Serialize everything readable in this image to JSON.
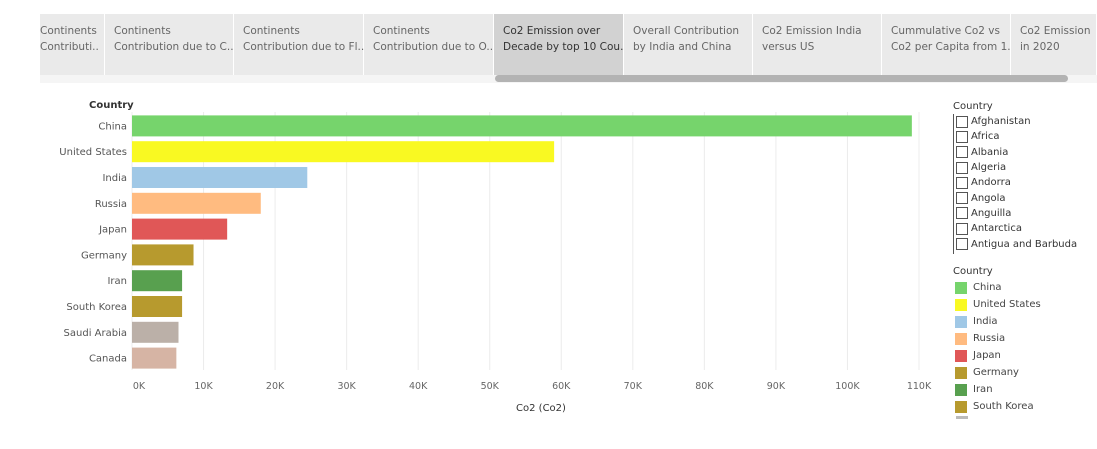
{
  "tabs": [
    {
      "line1": "Continents",
      "line2": "Contributi..",
      "active": false
    },
    {
      "line1": "Continents",
      "line2": "Contribution due to C..",
      "active": false
    },
    {
      "line1": "Continents",
      "line2": "Contribution due to Fl..",
      "active": false
    },
    {
      "line1": "Continents",
      "line2": "Contribution due to O..",
      "active": false
    },
    {
      "line1": "Co2 Emission over",
      "line2": "Decade by top 10 Cou..",
      "active": true
    },
    {
      "line1": "Overall Contribution",
      "line2": "by India and China",
      "active": false
    },
    {
      "line1": "Co2 Emission India",
      "line2": "versus US",
      "active": false
    },
    {
      "line1": "Cummulative Co2 vs",
      "line2": "Co2 per Capita from 1..",
      "active": false
    },
    {
      "line1": "Co2 Emission",
      "line2": "in 2020",
      "active": false
    }
  ],
  "filter": {
    "title": "Country",
    "items": [
      "Afghanistan",
      "Africa",
      "Albania",
      "Algeria",
      "Andorra",
      "Angola",
      "Anguilla",
      "Antarctica",
      "Antigua and Barbuda"
    ]
  },
  "legend": {
    "title": "Country",
    "items": [
      {
        "label": "China",
        "color": "#76d46c"
      },
      {
        "label": "United States",
        "color": "#f9f922"
      },
      {
        "label": "India",
        "color": "#a0c8e6"
      },
      {
        "label": "Russia",
        "color": "#ffbb80"
      },
      {
        "label": "Japan",
        "color": "#e05757"
      },
      {
        "label": "Germany",
        "color": "#b79a2e"
      },
      {
        "label": "Iran",
        "color": "#58a04f"
      },
      {
        "label": "South Korea",
        "color": "#b79a2e"
      }
    ]
  },
  "chart_data": {
    "type": "bar",
    "orientation": "horizontal",
    "row_header": "Country",
    "xlabel": "Co2 (Co2)",
    "categories": [
      "China",
      "United States",
      "India",
      "Russia",
      "Japan",
      "Germany",
      "Iran",
      "South Korea",
      "Saudi Arabia",
      "Canada"
    ],
    "values": [
      109000,
      59000,
      24500,
      18000,
      13300,
      8600,
      7000,
      7000,
      6500,
      6200
    ],
    "colors": [
      "#76d46c",
      "#f9f922",
      "#a0c8e6",
      "#ffbb80",
      "#e05757",
      "#b79a2e",
      "#58a04f",
      "#b79a2e",
      "#bbb0a8",
      "#d6b4a4"
    ],
    "xlim": [
      0,
      110000
    ],
    "xticks": [
      0,
      10000,
      20000,
      30000,
      40000,
      50000,
      60000,
      70000,
      80000,
      90000,
      100000,
      110000
    ],
    "xtick_labels": [
      "0K",
      "10K",
      "20K",
      "30K",
      "40K",
      "50K",
      "60K",
      "70K",
      "80K",
      "90K",
      "100K",
      "110K"
    ],
    "grid": true
  }
}
